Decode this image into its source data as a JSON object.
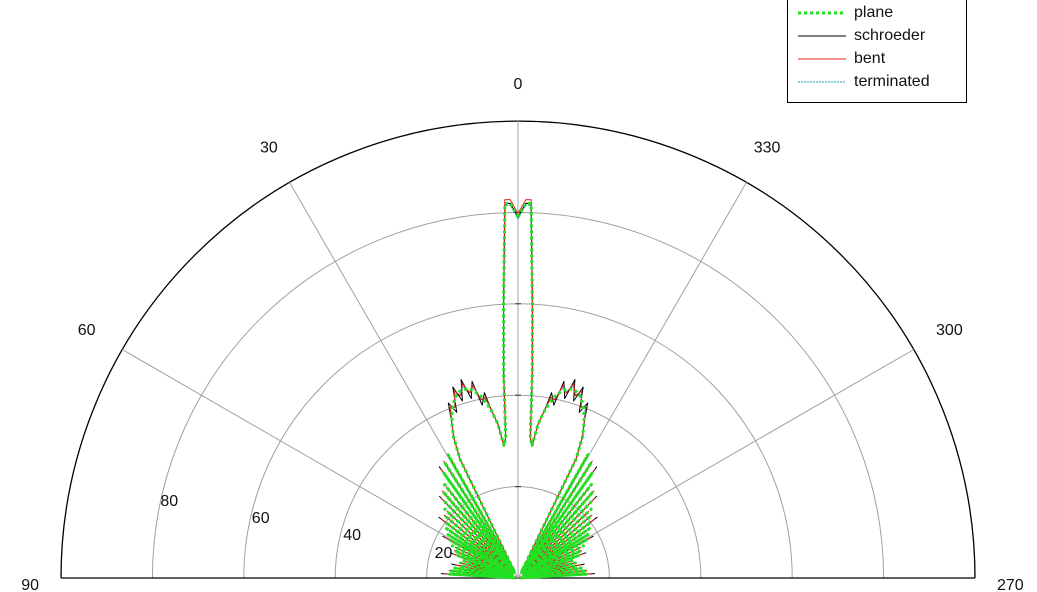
{
  "chart_data": {
    "type": "line",
    "subtype": "polar-half",
    "angle_range_deg": [
      -90,
      90
    ],
    "angle_direction": "counterclockwise-from-top",
    "r_range": [
      0,
      100
    ],
    "radial_ticks": [
      "20",
      "40",
      "60",
      "80"
    ],
    "radial_tick_values": [
      20,
      40,
      60,
      80
    ],
    "angle_ticks": [
      "0",
      "30",
      "60",
      "90",
      "330",
      "300",
      "270"
    ],
    "angle_tick_values": [
      0,
      30,
      60,
      90,
      -30,
      -60,
      -90
    ],
    "grid": true,
    "legend_position": "top-right",
    "series": [
      {
        "name": "plane",
        "color": "#22e022",
        "style": "dotted"
      },
      {
        "name": "schroeder",
        "color": "#000000",
        "style": "solid"
      },
      {
        "name": "bent",
        "color": "#e02020",
        "style": "solid"
      },
      {
        "name": "terminated",
        "color": "#1aa0c8",
        "style": "dashed"
      }
    ],
    "main_lobe": {
      "peak_angle_deg": [
        -2,
        2
      ],
      "peak_r": 82,
      "dip_at_0": 79,
      "edge_angle_deg": 5,
      "edge_r": 31
    },
    "side_lobe": {
      "angle_range_deg": [
        6,
        26
      ],
      "peak_r": 43,
      "edge_r": 29
    },
    "grating_lobes": {
      "angle_range_deg": [
        28,
        88
      ],
      "peak_r": [
        31,
        30,
        28,
        26,
        25,
        23,
        22,
        21,
        20,
        19,
        18,
        17,
        16,
        15,
        14,
        13,
        13,
        13,
        14,
        15,
        15
      ]
    }
  }
}
